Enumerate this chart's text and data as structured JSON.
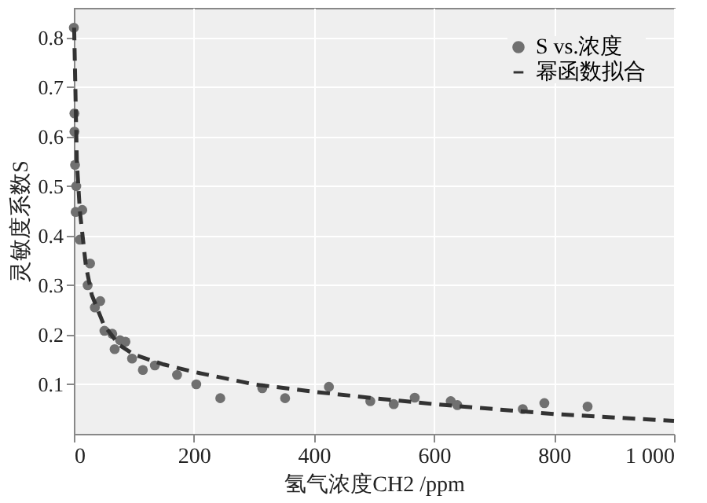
{
  "chart_data": {
    "type": "scatter",
    "xlabel": "氢气浓度CH2 /ppm",
    "ylabel": "灵敏度系数S",
    "xlim": [
      0,
      1000
    ],
    "ylim": [
      0,
      0.86
    ],
    "xticks": [
      0,
      200,
      400,
      600,
      800,
      {
        "value": 1000,
        "label": "1 000"
      }
    ],
    "yticks": [
      0.1,
      0.2,
      0.3,
      0.4,
      0.5,
      0.6,
      0.7,
      0.8
    ],
    "grid": true,
    "legend": "top right",
    "series": [
      {
        "name": "S vs.浓度",
        "marker": "circle",
        "color": "#707070",
        "x": [
          0,
          1,
          1,
          2,
          4,
          3,
          14,
          10,
          27,
          23,
          35,
          44,
          51,
          64,
          68,
          77,
          86,
          97,
          115,
          135,
          172,
          204,
          244,
          314,
          352,
          425,
          494,
          533,
          568,
          628,
          639,
          748,
          784,
          856
        ],
        "values": [
          0.82,
          0.647,
          0.61,
          0.543,
          0.5,
          0.448,
          0.452,
          0.392,
          0.344,
          0.3,
          0.255,
          0.268,
          0.208,
          0.202,
          0.171,
          0.189,
          0.186,
          0.152,
          0.129,
          0.138,
          0.119,
          0.1,
          0.072,
          0.092,
          0.072,
          0.095,
          0.066,
          0.06,
          0.073,
          0.066,
          0.058,
          0.05,
          0.062,
          0.055
        ]
      },
      {
        "name": "幂函数拟合",
        "type": "line",
        "line_style": "dashed",
        "color": "#333333",
        "x": [
          0.5,
          5,
          10,
          20,
          30,
          50,
          75,
          100,
          150,
          200,
          300,
          400,
          500,
          600,
          700,
          800,
          900,
          1000
        ],
        "values": [
          0.82,
          0.55,
          0.45,
          0.34,
          0.28,
          0.22,
          0.18,
          0.16,
          0.14,
          0.125,
          0.1,
          0.085,
          0.072,
          0.06,
          0.05,
          0.04,
          0.033,
          0.026
        ]
      }
    ]
  }
}
